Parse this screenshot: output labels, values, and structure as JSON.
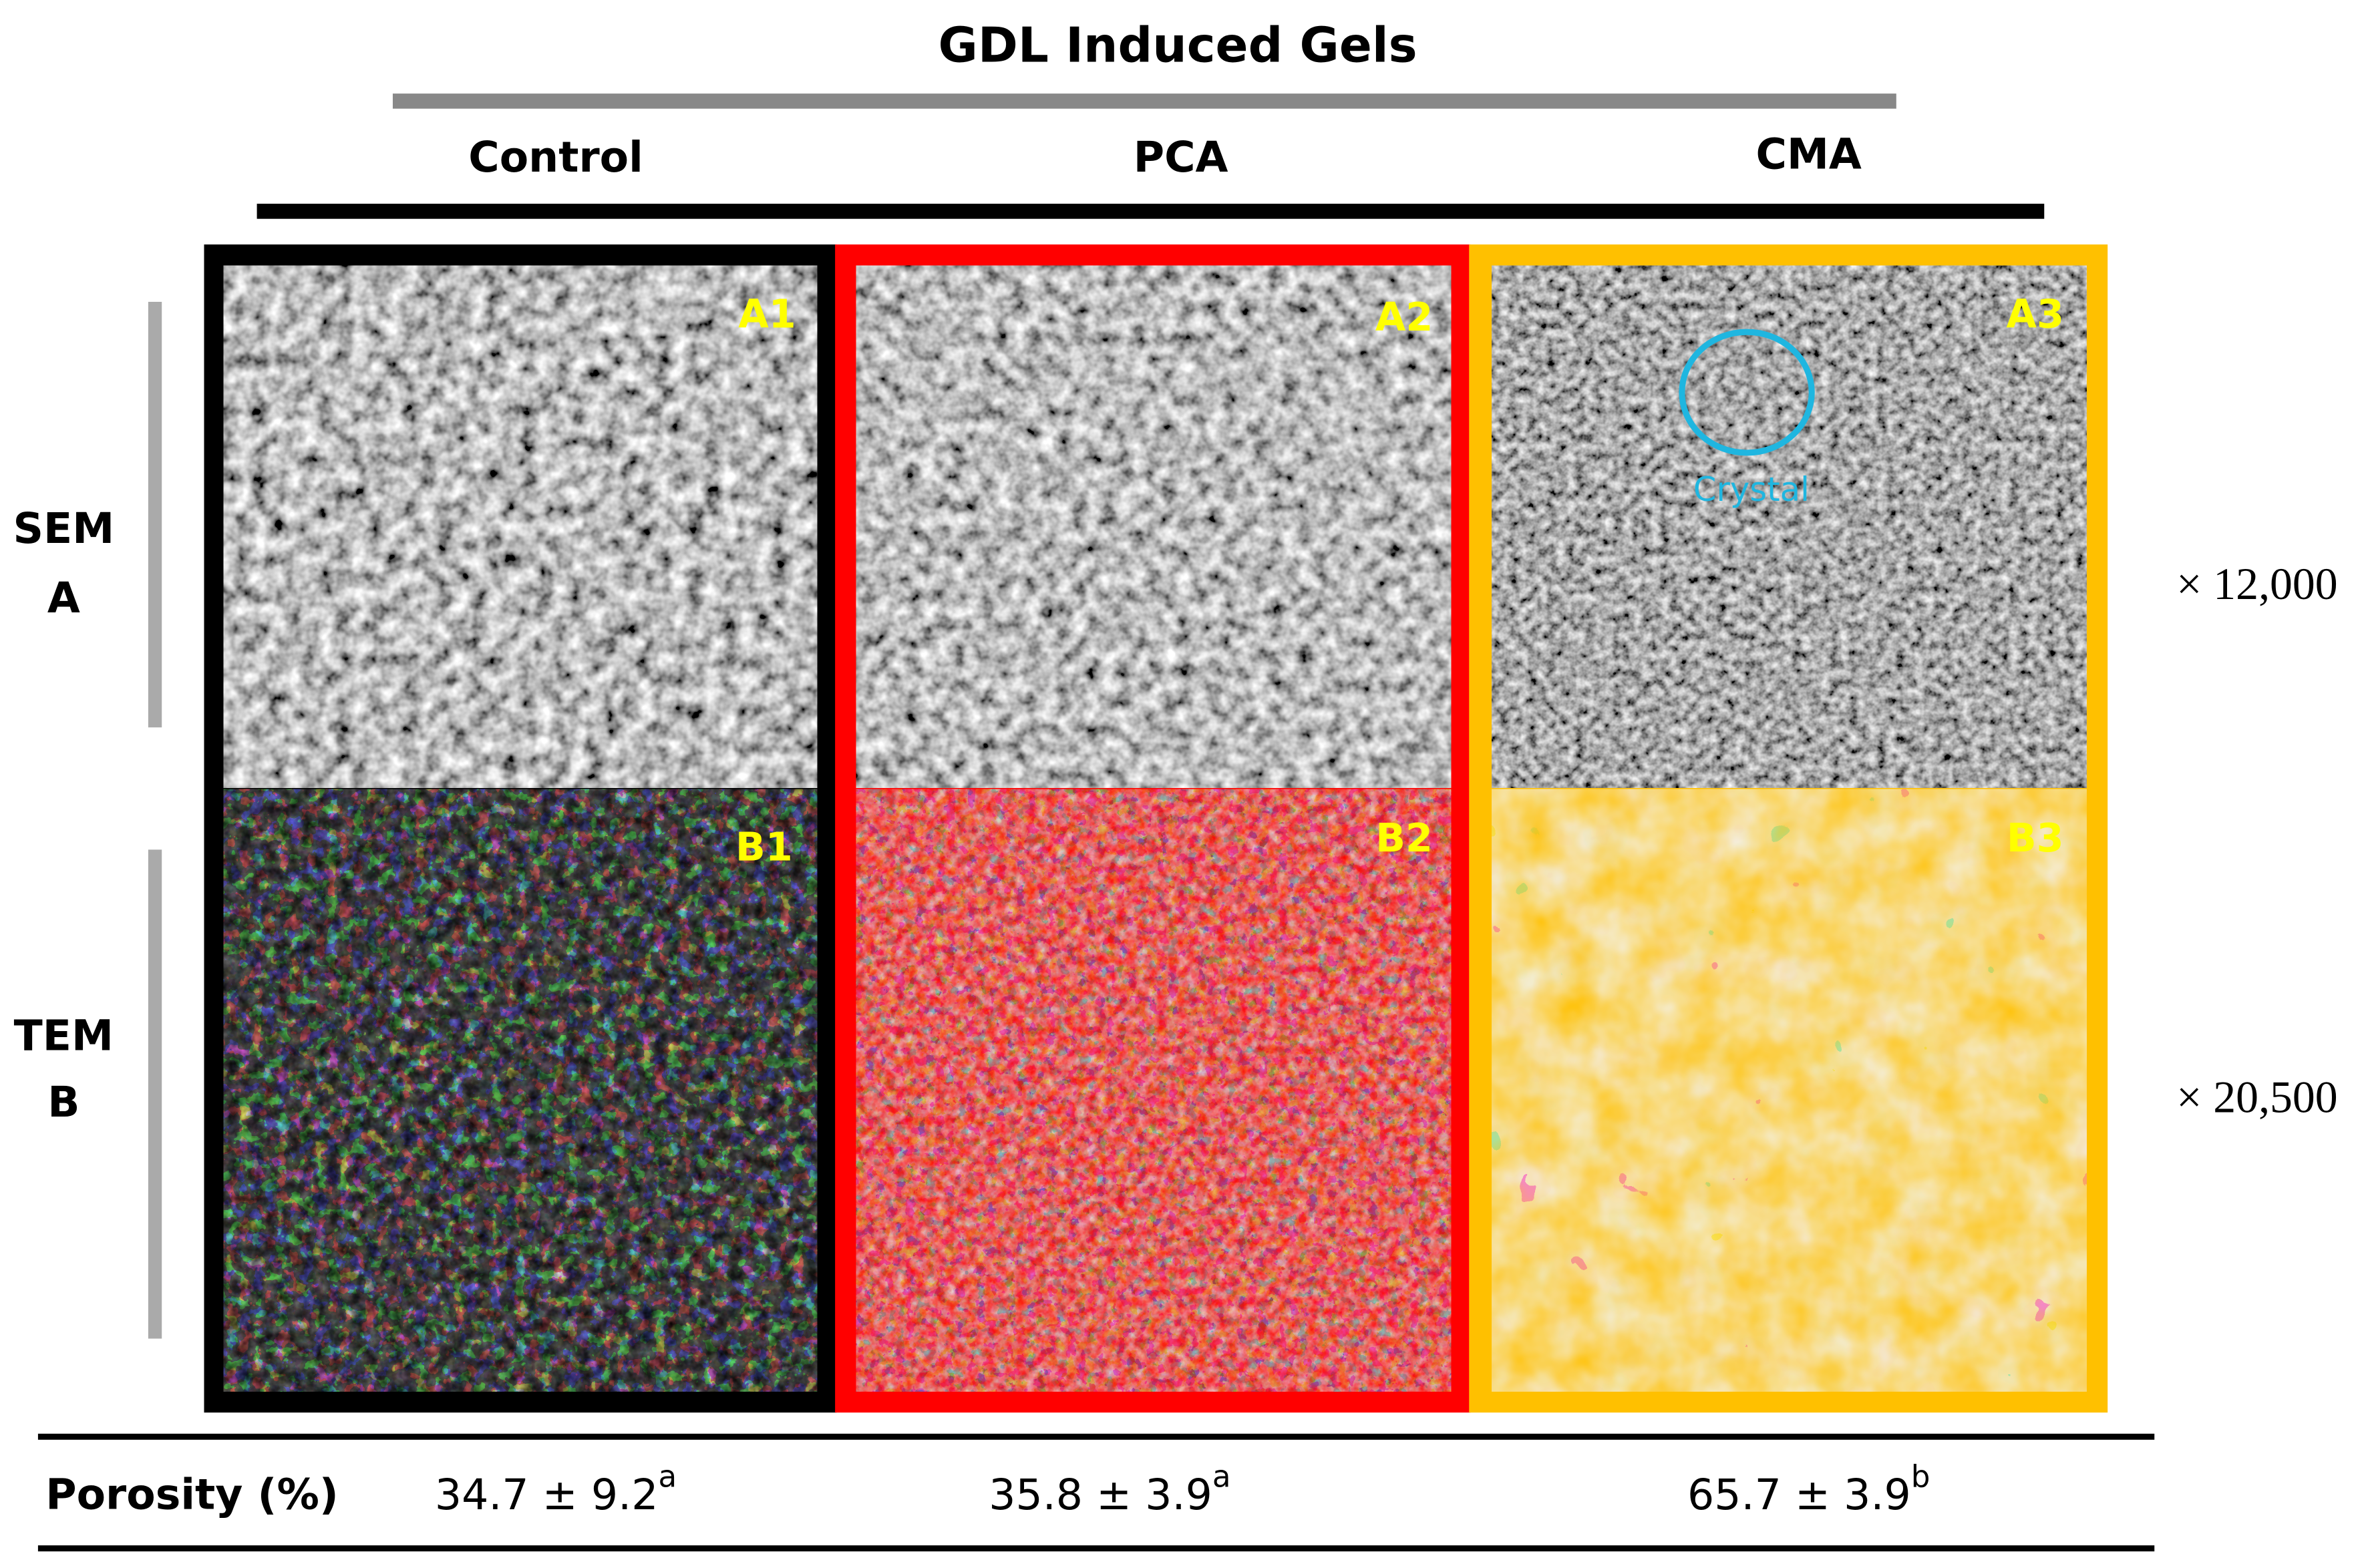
{
  "header": {
    "title": "GDL Induced Gels",
    "columns": [
      "Control",
      "PCA",
      "CMA"
    ]
  },
  "rows": [
    {
      "technique": "SEM",
      "label": "A",
      "magnification": "× 12,000"
    },
    {
      "technique": "TEM",
      "label": "B",
      "magnification": "× 20,500"
    }
  ],
  "panels": [
    [
      "A1",
      "A2",
      "A3"
    ],
    [
      "B1",
      "B2",
      "B3"
    ]
  ],
  "annotation": "Crystal",
  "porosity": {
    "label": "Porosity (%)",
    "values": [
      {
        "text": "34.7 ± 9.2",
        "superscript": "a"
      },
      {
        "text": "35.8 ± 3.9",
        "superscript": "a"
      },
      {
        "text": "65.7 ± 3.9",
        "superscript": "b"
      }
    ]
  }
}
